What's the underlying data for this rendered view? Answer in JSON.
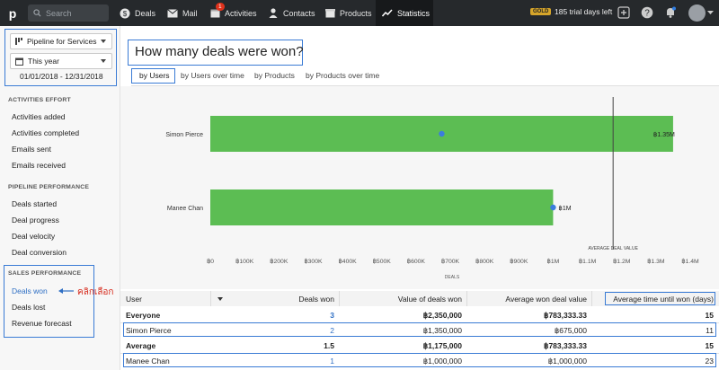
{
  "topbar": {
    "logo": "p",
    "search_placeholder": "Search",
    "nav": [
      {
        "label": "Deals",
        "icon": "dollar-icon"
      },
      {
        "label": "Mail",
        "icon": "mail-icon"
      },
      {
        "label": "Activities",
        "icon": "calendar-icon",
        "badge": "1"
      },
      {
        "label": "Contacts",
        "icon": "person-icon"
      },
      {
        "label": "Products",
        "icon": "box-icon"
      },
      {
        "label": "Statistics",
        "icon": "trend-icon",
        "active": true
      }
    ],
    "plan_badge": "GOLD",
    "trial_text": "185 trial days left"
  },
  "sidebar": {
    "pipeline": "Pipeline for Services",
    "period": "This year",
    "date_range": "01/01/2018 - 12/31/2018",
    "activities_header": "ACTIVITIES EFFORT",
    "activities": [
      "Activities added",
      "Activities completed",
      "Emails sent",
      "Emails received"
    ],
    "pipeline_header": "PIPELINE PERFORMANCE",
    "pipeline_items": [
      "Deals started",
      "Deal progress",
      "Deal velocity",
      "Deal conversion"
    ],
    "sales_header": "SALES PERFORMANCE",
    "sales_items": [
      "Deals won",
      "Deals lost",
      "Revenue forecast"
    ],
    "annotation": "คลิกเลือก"
  },
  "main": {
    "title": "How many deals were won?",
    "tabs": [
      "by Users",
      "by Users over time",
      "by Products",
      "by Products over time"
    ]
  },
  "chart_data": {
    "type": "bar",
    "orientation": "horizontal",
    "categories": [
      "Simon Pierce",
      "Manee Chan"
    ],
    "values": [
      1350000,
      1000000
    ],
    "value_labels": [
      "฿1.35M",
      "฿1M"
    ],
    "average_won_deal_points": [
      675000,
      1000000
    ],
    "reference_line": {
      "label": "AVERAGE DEAL VALUE",
      "value": 1175000
    },
    "xlabel": "DEALS",
    "xlim": [
      0,
      1400000
    ],
    "xticks": [
      "฿0",
      "฿100K",
      "฿200K",
      "฿300K",
      "฿400K",
      "฿500K",
      "฿600K",
      "฿700K",
      "฿800K",
      "฿900K",
      "฿1M",
      "฿1.1M",
      "฿1.2M",
      "฿1.3M",
      "฿1.4M"
    ],
    "bar_color": "#5cbd53",
    "point_color": "#3b7ddd"
  },
  "table": {
    "headers": [
      "User",
      "Deals won",
      "Value of deals won",
      "Average won deal value",
      "Average time until won (days)"
    ],
    "rows": [
      {
        "user": "Everyone",
        "deals": "3",
        "value": "฿2,350,000",
        "avg": "฿783,333.33",
        "days": "15",
        "bold": true
      },
      {
        "user": "Simon Pierce",
        "deals": "2",
        "value": "฿1,350,000",
        "avg": "฿675,000",
        "days": "11"
      },
      {
        "user": "Average",
        "deals": "1.5",
        "value": "฿1,175,000",
        "avg": "฿783,333.33",
        "days": "15",
        "bold": true
      },
      {
        "user": "Manee Chan",
        "deals": "1",
        "value": "฿1,000,000",
        "avg": "฿1,000,000",
        "days": "23"
      }
    ]
  }
}
